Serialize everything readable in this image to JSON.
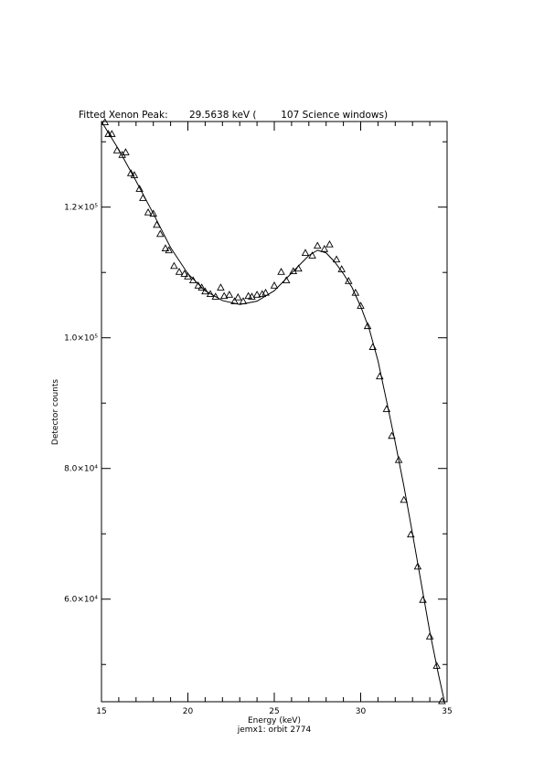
{
  "chart_data": {
    "type": "scatter",
    "title": "Fitted Xenon Peak:       29.5638 keV (        107 Science windows)",
    "xlabel": "Energy (keV)",
    "ylabel": "Detector counts",
    "caption": "jemx1: orbit 2774",
    "xlim": [
      15,
      35
    ],
    "ylim": [
      44300,
      133100
    ],
    "xticks": [
      15,
      20,
      25,
      30,
      35
    ],
    "yticks": [
      {
        "value": 60000,
        "label": "6.0×10⁴"
      },
      {
        "value": 80000,
        "label": "8.0×10⁴"
      },
      {
        "value": 100000,
        "label": "1.0×10⁵"
      },
      {
        "value": 120000,
        "label": "1.2×10⁵"
      }
    ],
    "xminorticks": [
      16,
      17,
      18,
      19,
      21,
      22,
      23,
      24,
      26,
      27,
      28,
      29,
      31,
      32,
      33,
      34
    ],
    "yminorticks": [
      50000,
      70000,
      90000,
      110000,
      130000
    ],
    "series": [
      {
        "marker": "triangle",
        "color": "#000000",
        "x": [
          15.2,
          15.4,
          15.6,
          15.9,
          16.2,
          16.4,
          16.7,
          16.9,
          17.2,
          17.4,
          17.7,
          18.0,
          18.2,
          18.4,
          18.7,
          18.9,
          19.2,
          19.5,
          19.8,
          20.0,
          20.3,
          20.6,
          20.8,
          21.0,
          21.3,
          21.6,
          21.9,
          22.1,
          22.4,
          22.7,
          22.9,
          23.2,
          23.5,
          23.7,
          24.0,
          24.3,
          24.5,
          25.0,
          25.4,
          25.7,
          26.1,
          26.4,
          26.8,
          27.2,
          27.5,
          27.9,
          28.2,
          28.6,
          28.9,
          29.3,
          29.7,
          30.0,
          30.4,
          30.7,
          31.1,
          31.5,
          31.8,
          32.2,
          32.5,
          32.9,
          33.3,
          33.6,
          34.0,
          34.4,
          34.7
        ],
        "values": [
          133000,
          131200,
          131200,
          128700,
          128000,
          128400,
          125200,
          124900,
          122800,
          121400,
          119200,
          119000,
          117300,
          115900,
          113700,
          113400,
          111000,
          110100,
          109800,
          109400,
          108800,
          108000,
          107700,
          107100,
          106700,
          106300,
          107700,
          106400,
          106600,
          105600,
          106200,
          105600,
          106400,
          106300,
          106600,
          106700,
          106900,
          108000,
          110100,
          108800,
          110200,
          110600,
          113000,
          112600,
          114100,
          113600,
          114300,
          112000,
          110500,
          108700,
          106900,
          104900,
          101800,
          98600,
          94100,
          89100,
          85000,
          81300,
          75200,
          69900,
          65000,
          59900,
          54300,
          49800,
          44400
        ]
      },
      {
        "marker": "line",
        "color": "#000000",
        "x": [
          15.0,
          16,
          17,
          18,
          19,
          20,
          21,
          22,
          23,
          24,
          25,
          26,
          27,
          27.5,
          28,
          28.5,
          29,
          29.5,
          30,
          30.5,
          31,
          31.5,
          32,
          32.5,
          33,
          33.5,
          34,
          34.5,
          34.85
        ],
        "values": [
          133100,
          128800,
          124000,
          119000,
          113800,
          109800,
          107200,
          105700,
          105100,
          105600,
          107200,
          109900,
          112600,
          113400,
          113000,
          111600,
          109800,
          107700,
          104800,
          101300,
          96500,
          90300,
          84000,
          77300,
          70000,
          62500,
          55000,
          48500,
          44300
        ]
      }
    ]
  }
}
